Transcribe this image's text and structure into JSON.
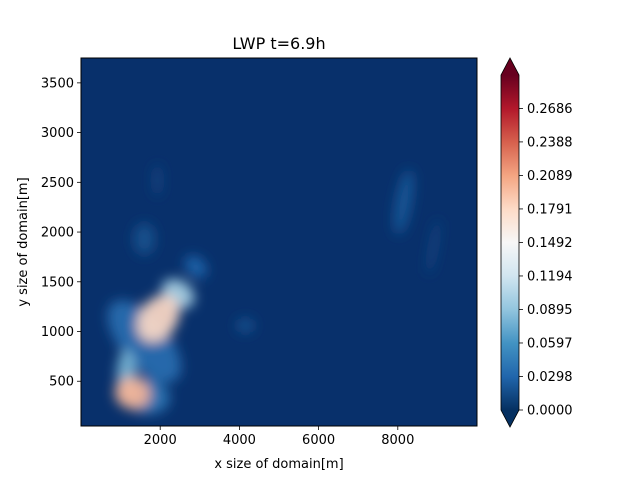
{
  "chart_data": {
    "type": "heatmap",
    "title": "LWP t=6.9h",
    "xlabel": "x size of domain[m]",
    "ylabel": "y size of domain[m]",
    "xlim": [
      0,
      10000
    ],
    "ylim": [
      50,
      3750
    ],
    "x_ticks": [
      2000,
      4000,
      6000,
      8000
    ],
    "x_tick_labels": [
      "2000",
      "4000",
      "6000",
      "8000"
    ],
    "y_ticks": [
      500,
      1000,
      1500,
      2000,
      2500,
      3000,
      3500
    ],
    "y_tick_labels": [
      "500",
      "1000",
      "1500",
      "2000",
      "2500",
      "3000",
      "3500"
    ],
    "colormap": "RdBu_r",
    "background_value": 0.0,
    "colorbar": {
      "min": 0.0,
      "max": 0.2984,
      "extend": "both",
      "ticks": [
        0.0,
        0.0298,
        0.0597,
        0.0895,
        0.1194,
        0.1492,
        0.1791,
        0.2089,
        0.2388,
        0.2686
      ],
      "tick_labels": [
        "0.0000",
        "0.0298",
        "0.0597",
        "0.0895",
        "0.1194",
        "0.1492",
        "0.1791",
        "0.2089",
        "0.2388",
        "0.2686"
      ]
    },
    "features": [
      {
        "x": 1300,
        "y": 380,
        "sx": 450,
        "sy": 160,
        "angle": -15,
        "value": 0.2
      },
      {
        "x": 1150,
        "y": 560,
        "sx": 250,
        "sy": 260,
        "angle": 0,
        "value": 0.08
      },
      {
        "x": 1950,
        "y": 1130,
        "sx": 650,
        "sy": 190,
        "angle": 55,
        "value": 0.18
      },
      {
        "x": 2450,
        "y": 1380,
        "sx": 330,
        "sy": 180,
        "angle": 55,
        "value": 0.1
      },
      {
        "x": 1600,
        "y": 900,
        "sx": 600,
        "sy": 500,
        "angle": 40,
        "value": 0.035
      },
      {
        "x": 2900,
        "y": 1650,
        "sx": 230,
        "sy": 130,
        "angle": 45,
        "value": 0.03
      },
      {
        "x": 1650,
        "y": 350,
        "sx": 600,
        "sy": 180,
        "angle": -10,
        "value": 0.04
      },
      {
        "x": 8150,
        "y": 2300,
        "sx": 200,
        "sy": 330,
        "angle": -10,
        "value": 0.022
      },
      {
        "x": 8900,
        "y": 1850,
        "sx": 80,
        "sy": 280,
        "angle": -10,
        "value": 0.015
      },
      {
        "x": 4150,
        "y": 1060,
        "sx": 220,
        "sy": 70,
        "angle": 0,
        "value": 0.02
      },
      {
        "x": 1930,
        "y": 2520,
        "sx": 90,
        "sy": 160,
        "angle": 0,
        "value": 0.015
      },
      {
        "x": 1600,
        "y": 1930,
        "sx": 270,
        "sy": 160,
        "angle": 0,
        "value": 0.018
      }
    ]
  },
  "colors": {
    "background": "#08306b",
    "colormap_stops": [
      "#053061",
      "#2166ac",
      "#4393c3",
      "#92c5de",
      "#d1e5f0",
      "#f7f7f7",
      "#fddbc7",
      "#f4a582",
      "#d6604d",
      "#b2182b",
      "#67001f"
    ]
  }
}
